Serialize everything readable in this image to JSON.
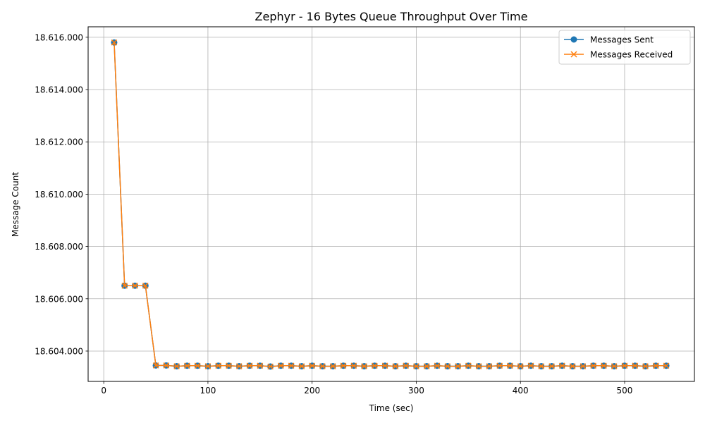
{
  "chart_data": {
    "type": "line",
    "title": "Zephyr - 16 Bytes Queue Throughput Over Time",
    "xlabel": "Time (sec)",
    "ylabel": "Message Count",
    "xlim": [
      -15,
      567
    ],
    "ylim": [
      18602840,
      18616400
    ],
    "xticks": [
      0,
      100,
      200,
      300,
      400,
      500
    ],
    "xtick_labels": [
      "0",
      "100",
      "200",
      "300",
      "400",
      "500"
    ],
    "yticks": [
      18604000,
      18606000,
      18608000,
      18610000,
      18612000,
      18614000,
      18616000
    ],
    "ytick_labels": [
      "18.604.000",
      "18.606.000",
      "18.608.000",
      "18.610.000",
      "18.612.000",
      "18.614.000",
      "18.616.000"
    ],
    "grid": true,
    "legend_position": "top-right",
    "x": [
      10,
      20,
      30,
      40,
      50,
      60,
      70,
      80,
      90,
      100,
      110,
      120,
      130,
      140,
      150,
      160,
      170,
      180,
      190,
      200,
      210,
      220,
      230,
      240,
      250,
      260,
      270,
      280,
      290,
      300,
      310,
      320,
      330,
      340,
      350,
      360,
      370,
      380,
      390,
      400,
      410,
      420,
      430,
      440,
      450,
      460,
      470,
      480,
      490,
      500,
      510,
      520,
      530,
      540
    ],
    "series": [
      {
        "name": "Messages Sent",
        "color": "#1f77b4",
        "marker": "circle",
        "values": [
          18615800,
          18606500,
          18606500,
          18606500,
          18603450,
          18603450,
          18603420,
          18603440,
          18603440,
          18603420,
          18603440,
          18603440,
          18603420,
          18603440,
          18603440,
          18603410,
          18603440,
          18603440,
          18603420,
          18603440,
          18603420,
          18603420,
          18603440,
          18603440,
          18603420,
          18603440,
          18603440,
          18603420,
          18603440,
          18603420,
          18603420,
          18603440,
          18603420,
          18603420,
          18603440,
          18603420,
          18603420,
          18603440,
          18603440,
          18603420,
          18603440,
          18603420,
          18603420,
          18603440,
          18603420,
          18603420,
          18603440,
          18603440,
          18603420,
          18603440,
          18603440,
          18603420,
          18603440,
          18603440
        ]
      },
      {
        "name": "Messages Received",
        "color": "#ff7f0e",
        "marker": "x",
        "values": [
          18615800,
          18606500,
          18606500,
          18606500,
          18603450,
          18603450,
          18603420,
          18603440,
          18603440,
          18603420,
          18603440,
          18603440,
          18603420,
          18603440,
          18603440,
          18603410,
          18603440,
          18603440,
          18603420,
          18603440,
          18603420,
          18603420,
          18603440,
          18603440,
          18603420,
          18603440,
          18603440,
          18603420,
          18603440,
          18603420,
          18603420,
          18603440,
          18603420,
          18603420,
          18603440,
          18603420,
          18603420,
          18603440,
          18603440,
          18603420,
          18603440,
          18603420,
          18603420,
          18603440,
          18603420,
          18603420,
          18603440,
          18603440,
          18603420,
          18603440,
          18603440,
          18603420,
          18603440,
          18603440
        ]
      }
    ]
  }
}
